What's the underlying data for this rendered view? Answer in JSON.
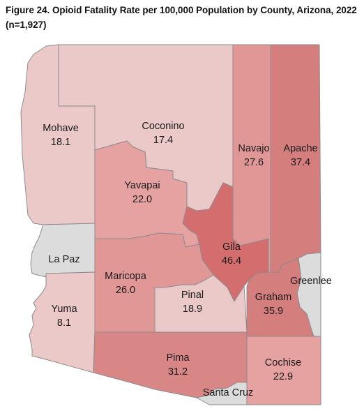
{
  "title_line1": "Figure 24. Opioid Fatality Rate per 100,000 Population by County, Arizona, 2022",
  "title_line2": "(n=1,927)",
  "counties": {
    "mohave": {
      "name": "Mohave",
      "value": "18.1",
      "color": "#ecc9c9"
    },
    "coconino": {
      "name": "Coconino",
      "value": "17.4",
      "color": "#ecc9c9"
    },
    "navajo": {
      "name": "Navajo",
      "value": "27.6",
      "color": "#e29797"
    },
    "apache": {
      "name": "Apache",
      "value": "37.4",
      "color": "#d47e7e"
    },
    "yavapai": {
      "name": "Yavapai",
      "value": "22.0",
      "color": "#e6a1a1"
    },
    "la_paz": {
      "name": "La Paz",
      "value": "",
      "color": "#dcdcdc"
    },
    "gila": {
      "name": "Gila",
      "value": "46.4",
      "color": "#d46e6e"
    },
    "maricopa": {
      "name": "Maricopa",
      "value": "26.0",
      "color": "#e29797"
    },
    "pinal": {
      "name": "Pinal",
      "value": "18.9",
      "color": "#ecc9c9"
    },
    "greenlee": {
      "name": "Greenlee",
      "value": "",
      "color": "#dcdcdc"
    },
    "graham": {
      "name": "Graham",
      "value": "35.9",
      "color": "#d47e7e"
    },
    "yuma": {
      "name": "Yuma",
      "value": "8.1",
      "color": "#ecc9c9"
    },
    "pima": {
      "name": "Pima",
      "value": "31.2",
      "color": "#d98686"
    },
    "cochise": {
      "name": "Cochise",
      "value": "22.9",
      "color": "#e6a1a1"
    },
    "santa_cruz": {
      "name": "Santa Cruz",
      "value": "",
      "color": "#dcdcdc"
    }
  }
}
